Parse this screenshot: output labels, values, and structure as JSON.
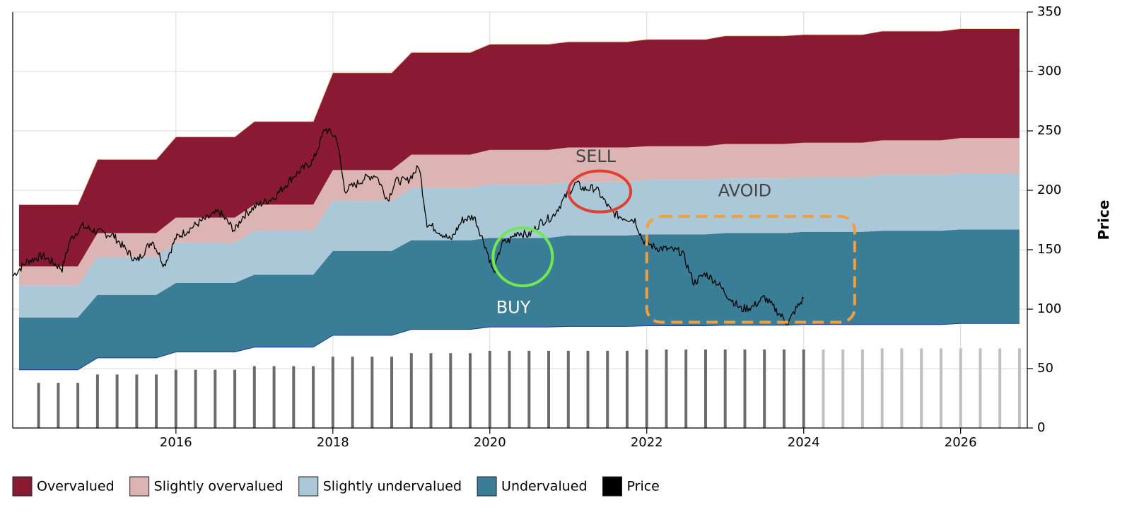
{
  "chart_data": {
    "type": "area",
    "title": "",
    "xlabel": "",
    "ylabel": "Price",
    "ylim": [
      0,
      350
    ],
    "y_axis_position": "right",
    "grid": true,
    "legend_placement": "bottom-left",
    "x_ticks": [
      2016,
      2018,
      2020,
      2022,
      2024,
      2026
    ],
    "x_tick_labels": [
      "2016",
      "2018",
      "2020",
      "2022",
      "2024",
      "2026"
    ],
    "y_ticks": [
      0,
      50,
      100,
      150,
      200,
      250,
      300,
      350
    ],
    "y_tick_labels": [
      "0",
      "50",
      "100",
      "150",
      "200",
      "250",
      "300",
      "350"
    ],
    "band_dates": [
      2014.0,
      2014.75,
      2015.0,
      2015.75,
      2016.0,
      2016.75,
      2017.0,
      2017.75,
      2018.0,
      2018.75,
      2019.0,
      2019.75,
      2020.0,
      2020.75,
      2021.0,
      2021.75,
      2022.0,
      2022.75,
      2023.0,
      2023.75,
      2024.0,
      2024.75,
      2025.0,
      2025.75,
      2026.0,
      2026.75
    ],
    "bands": [
      {
        "name": "Undervalued",
        "color": "#3a7d97",
        "lower": [
          49,
          49,
          59,
          59,
          64,
          64,
          68,
          68,
          78,
          78,
          83,
          83,
          85,
          85,
          85.5,
          85.5,
          86,
          86,
          86.5,
          86.5,
          87,
          87,
          87,
          87,
          88,
          88
        ],
        "upper": [
          93,
          93,
          112,
          112,
          122,
          122,
          129,
          129,
          149,
          149,
          158,
          158,
          160,
          160,
          162,
          162,
          163,
          163,
          164,
          164,
          165,
          165,
          166,
          166,
          167,
          167
        ]
      },
      {
        "name": "Slightly undervalued",
        "color": "#aac8d8",
        "lower": [
          93,
          93,
          112,
          112,
          122,
          122,
          129,
          129,
          149,
          149,
          158,
          158,
          160,
          160,
          162,
          162,
          163,
          163,
          164,
          164,
          165,
          165,
          166,
          166,
          167,
          167
        ],
        "upper": [
          120,
          120,
          144,
          144,
          156,
          156,
          166,
          166,
          191,
          191,
          202,
          202,
          205,
          205,
          207,
          207,
          209,
          209,
          210,
          210,
          211,
          211,
          213,
          213,
          214,
          214
        ]
      },
      {
        "name": "Slightly overvalued",
        "color": "#ddb4b4",
        "lower": [
          120,
          120,
          144,
          144,
          156,
          156,
          166,
          166,
          191,
          191,
          202,
          202,
          205,
          205,
          207,
          207,
          209,
          209,
          210,
          210,
          211,
          211,
          213,
          213,
          214,
          214
        ],
        "upper": [
          136,
          136,
          164,
          164,
          177,
          177,
          188,
          188,
          217,
          217,
          230,
          230,
          234,
          234,
          236,
          236,
          237,
          237,
          239,
          239,
          240,
          240,
          242,
          242,
          244,
          244
        ]
      },
      {
        "name": "Overvalued",
        "color": "#8a1a33",
        "lower": [
          136,
          136,
          164,
          164,
          177,
          177,
          188,
          188,
          217,
          217,
          230,
          230,
          234,
          234,
          236,
          236,
          237,
          237,
          239,
          239,
          240,
          240,
          242,
          242,
          244,
          244
        ],
        "upper": [
          188,
          188,
          226,
          226,
          245,
          245,
          258,
          258,
          299,
          299,
          316,
          316,
          323,
          323,
          325,
          325,
          327,
          327,
          330,
          330,
          331,
          331,
          334,
          334,
          336,
          336
        ]
      }
    ],
    "price": {
      "name": "Price",
      "color": "#000000",
      "x": [
        2013.92,
        2014.1,
        2014.3,
        2014.55,
        2014.65,
        2014.8,
        2015.0,
        2015.2,
        2015.5,
        2015.7,
        2015.85,
        2016.0,
        2016.05,
        2016.3,
        2016.55,
        2016.75,
        2016.85,
        2017.0,
        2017.25,
        2017.5,
        2017.75,
        2017.9,
        2018.05,
        2018.15,
        2018.3,
        2018.4,
        2018.55,
        2018.7,
        2018.8,
        2018.95,
        2019.1,
        2019.2,
        2019.3,
        2019.5,
        2019.65,
        2019.8,
        2019.95,
        2020.05,
        2020.15,
        2020.25,
        2020.35,
        2020.5,
        2020.65,
        2020.8,
        2021.0,
        2021.1,
        2021.2,
        2021.35,
        2021.55,
        2021.65,
        2021.85,
        2021.95,
        2022.1,
        2022.3,
        2022.45,
        2022.6,
        2022.75,
        2022.9,
        2023.05,
        2023.2,
        2023.35,
        2023.5,
        2023.65,
        2023.8,
        2023.9,
        2024.0
      ],
      "y": [
        128,
        140,
        145,
        134,
        158,
        170,
        165,
        162,
        140,
        158,
        137,
        160,
        162,
        173,
        182,
        166,
        178,
        186,
        194,
        212,
        225,
        252,
        244,
        200,
        205,
        210,
        213,
        192,
        208,
        208,
        220,
        172,
        168,
        158,
        175,
        178,
        152,
        130,
        155,
        158,
        165,
        162,
        173,
        178,
        198,
        206,
        201,
        202,
        182,
        178,
        175,
        158,
        152,
        150,
        148,
        122,
        130,
        122,
        110,
        100,
        102,
        110,
        99,
        88,
        100,
        109
      ]
    },
    "dividend_bars": {
      "color": "#6b6b6b",
      "projected_color": "#c0c0c0",
      "projected_from_index": 40,
      "x": [
        2014.25,
        2014.5,
        2014.75,
        2015.0,
        2015.25,
        2015.5,
        2015.75,
        2016.0,
        2016.25,
        2016.5,
        2016.75,
        2017.0,
        2017.25,
        2017.5,
        2017.75,
        2018.0,
        2018.25,
        2018.5,
        2018.75,
        2019.0,
        2019.25,
        2019.5,
        2019.75,
        2020.0,
        2020.25,
        2020.5,
        2020.75,
        2021.0,
        2021.25,
        2021.5,
        2021.75,
        2022.0,
        2022.25,
        2022.5,
        2022.75,
        2023.0,
        2023.25,
        2023.5,
        2023.75,
        2024.0,
        2024.25,
        2024.5,
        2024.75,
        2025.0,
        2025.25,
        2025.5,
        2025.75,
        2026.0,
        2026.25,
        2026.5,
        2026.75
      ],
      "values": [
        38,
        38,
        38,
        45,
        45,
        45,
        45,
        49,
        49,
        49,
        49,
        52,
        52,
        52,
        52,
        60,
        60,
        60,
        60,
        63,
        63,
        63,
        63,
        65,
        65,
        65,
        65,
        65,
        65,
        65,
        65,
        66,
        66,
        66,
        66,
        66,
        66,
        66,
        66,
        66,
        66,
        66,
        66,
        67,
        67,
        67,
        67,
        67,
        67,
        67,
        67
      ]
    },
    "annotations": [
      {
        "text": "SELL",
        "color": "#444444",
        "x": 2021.35,
        "y": 228,
        "marker": "ellipse",
        "marker_color": "#e04030",
        "marker_x": 2021.4,
        "marker_y": 199
      },
      {
        "text": "AVOID",
        "color": "#444444",
        "x": 2023.25,
        "y": 199,
        "marker": "dashed-rounded-rect",
        "marker_color": "#f0a040",
        "marker_x": [
          2022.0,
          2024.65
        ],
        "marker_y": [
          89,
          178
        ]
      },
      {
        "text": "BUY",
        "color": "#ffffff",
        "x": 2020.3,
        "y": 101,
        "marker": "ellipse",
        "marker_color": "#70e850",
        "marker_x": 2020.42,
        "marker_y": 144
      }
    ],
    "legend": [
      {
        "label": "Overvalued",
        "color": "#8a1a33"
      },
      {
        "label": "Slightly overvalued",
        "color": "#ddb4b4"
      },
      {
        "label": "Slightly undervalued",
        "color": "#aac8d8"
      },
      {
        "label": "Undervalued",
        "color": "#3a7d97"
      },
      {
        "label": "Price",
        "color": "#000000"
      }
    ]
  }
}
